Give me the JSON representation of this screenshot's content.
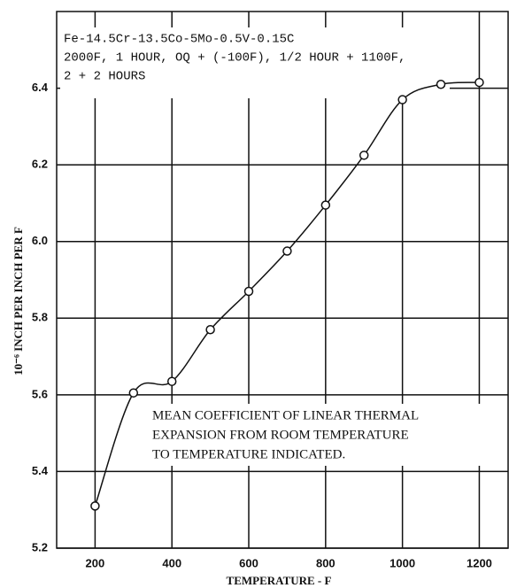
{
  "chart_data": {
    "type": "line",
    "xlabel": "TEMPERATURE - F",
    "ylabel": "10⁻⁶ INCH PER INCH PER F",
    "annotations": [
      "Fe-14.5Cr-13.5Co-5Mo-0.5V-0.15C",
      "2000F, 1 HOUR, OQ + (-100F), 1/2 HOUR + 1100F,",
      "2 + 2 HOURS"
    ],
    "note": [
      "MEAN COEFFICIENT OF LINEAR THERMAL",
      "EXPANSION FROM ROOM TEMPERATURE",
      "TO TEMPERATURE INDICATED."
    ],
    "x": [
      200,
      300,
      400,
      500,
      600,
      700,
      800,
      900,
      1000,
      1100,
      1200
    ],
    "series": [
      {
        "color": "#111111",
        "values": [
          5.31,
          5.605,
          5.635,
          5.77,
          5.87,
          5.975,
          6.095,
          6.225,
          6.37,
          6.41,
          6.415
        ]
      }
    ],
    "xlim": [
      100,
      1275
    ],
    "xticks": [
      200,
      400,
      600,
      800,
      1000,
      1200
    ],
    "ylim": [
      5.2,
      6.6
    ],
    "yticks": [
      {
        "value": 5.2,
        "label": "5.2"
      },
      5.4,
      5.6,
      5.8,
      {
        "value": 6.0,
        "label": "6.0"
      },
      6.2,
      6.4
    ],
    "grid": true
  }
}
